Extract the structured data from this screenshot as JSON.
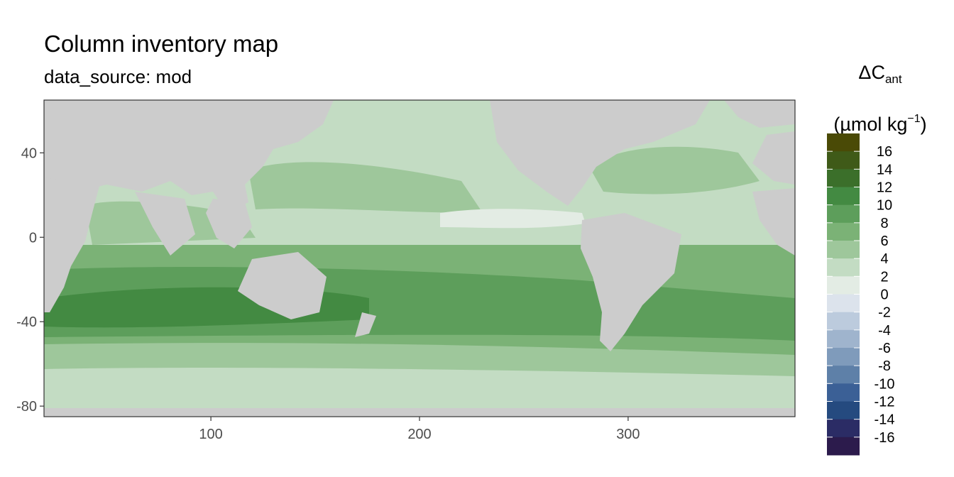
{
  "chart_data": {
    "type": "heatmap",
    "title": "Column inventory map",
    "subtitle": "data_source: mod",
    "legend_title_line1": "ΔC",
    "legend_title_sub": "ant",
    "legend_unit_line2": "(µmol kg",
    "legend_unit_sup": "−1",
    "legend_unit_close": ")",
    "legend_position": "right",
    "xlim": [
      20,
      380
    ],
    "ylim": [
      -85,
      65
    ],
    "x_ticks": [
      100,
      200,
      300
    ],
    "y_ticks": [
      40,
      0,
      -40,
      -80
    ],
    "legend_breaks": [
      16,
      14,
      12,
      10,
      8,
      6,
      4,
      2,
      0,
      -2,
      -4,
      -6,
      -8,
      -10,
      -12,
      -14,
      -16
    ],
    "legend_colors": [
      "#4a4a06",
      "#3f5a18",
      "#3b6f2a",
      "#438a42",
      "#5d9e5b",
      "#7bb276",
      "#9ec79b",
      "#c3dcc3",
      "#e3ece4",
      "#dce3ec",
      "#bccbdd",
      "#9fb4cd",
      "#7f9bbb",
      "#5e80a8",
      "#3b6096",
      "#254a7f",
      "#2b2c65",
      "#2c1b4c"
    ],
    "land_color": "#cccccc",
    "grid": false
  }
}
